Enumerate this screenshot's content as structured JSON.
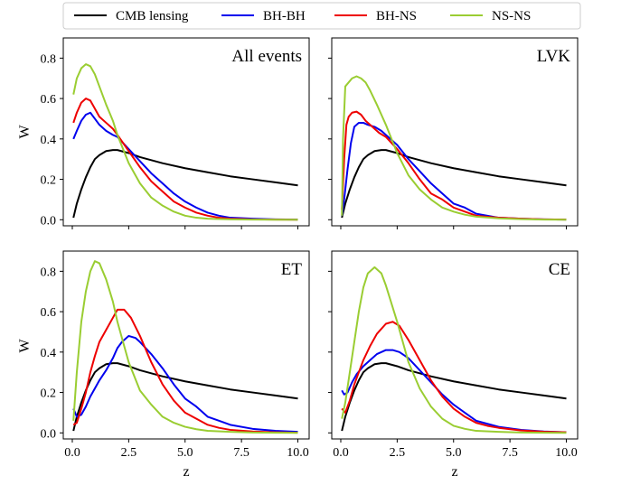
{
  "chart_data": {
    "type": "line",
    "layout": "2x2 grid, shared x and y axes",
    "xlabel": "z",
    "ylabel": "W",
    "xlim": [
      -0.4,
      10.5
    ],
    "ylim": [
      -0.03,
      0.9
    ],
    "xticks": [
      0,
      2.5,
      5,
      7.5,
      10
    ],
    "xtick_labels": [
      "0.0",
      "2.5",
      "5.0",
      "7.5",
      "10.0"
    ],
    "yticks": [
      0,
      0.2,
      0.4,
      0.6,
      0.8
    ],
    "ytick_labels": [
      "0.0",
      "0.2",
      "0.4",
      "0.6",
      "0.8"
    ],
    "legend": {
      "placement": "top-center outside",
      "entries": [
        {
          "label": "CMB lensing",
          "color": "#000000"
        },
        {
          "label": "BH-BH",
          "color": "#0000ee"
        },
        {
          "label": "BH-NS",
          "color": "#ee0000"
        },
        {
          "label": "NS-NS",
          "color": "#9acd32"
        }
      ]
    },
    "panels": [
      {
        "title": "All events",
        "series": [
          {
            "name": "CMB lensing",
            "color": "#000000",
            "x": [
              0.05,
              0.2,
              0.4,
              0.6,
              0.8,
              1,
              1.2,
              1.5,
              1.8,
              2,
              2.5,
              3,
              4,
              5,
              6,
              7,
              8,
              9,
              10
            ],
            "y": [
              0.01,
              0.08,
              0.15,
              0.21,
              0.26,
              0.3,
              0.32,
              0.34,
              0.345,
              0.345,
              0.33,
              0.31,
              0.28,
              0.255,
              0.235,
              0.215,
              0.2,
              0.185,
              0.17
            ]
          },
          {
            "name": "BH-BH",
            "color": "#0000ee",
            "x": [
              0.05,
              0.2,
              0.4,
              0.6,
              0.8,
              1,
              1.2,
              1.5,
              1.8,
              2,
              2.5,
              3,
              3.5,
              4,
              4.5,
              5,
              5.5,
              6,
              6.5,
              7,
              8,
              9,
              10
            ],
            "y": [
              0.4,
              0.44,
              0.49,
              0.52,
              0.53,
              0.5,
              0.47,
              0.44,
              0.42,
              0.41,
              0.35,
              0.29,
              0.23,
              0.18,
              0.13,
              0.09,
              0.06,
              0.035,
              0.02,
              0.01,
              0.005,
              0.002,
              0.001
            ]
          },
          {
            "name": "BH-NS",
            "color": "#ee0000",
            "x": [
              0.05,
              0.2,
              0.4,
              0.6,
              0.8,
              1,
              1.2,
              1.5,
              1.8,
              2,
              2.5,
              3,
              3.5,
              4,
              4.5,
              5,
              5.5,
              6,
              6.5,
              7,
              8,
              9,
              10
            ],
            "y": [
              0.48,
              0.53,
              0.58,
              0.6,
              0.59,
              0.55,
              0.51,
              0.48,
              0.45,
              0.42,
              0.34,
              0.26,
              0.19,
              0.14,
              0.09,
              0.06,
              0.035,
              0.02,
              0.01,
              0.005,
              0.002,
              0.001,
              0.0
            ]
          },
          {
            "name": "NS-NS",
            "color": "#9acd32",
            "x": [
              0.05,
              0.2,
              0.4,
              0.6,
              0.8,
              1,
              1.2,
              1.5,
              1.8,
              2,
              2.5,
              3,
              3.5,
              4,
              4.5,
              5,
              5.5,
              6,
              7,
              8,
              9,
              10
            ],
            "y": [
              0.62,
              0.7,
              0.75,
              0.77,
              0.76,
              0.72,
              0.66,
              0.57,
              0.49,
              0.42,
              0.28,
              0.18,
              0.11,
              0.07,
              0.04,
              0.02,
              0.01,
              0.005,
              0.002,
              0.001,
              0.0,
              0.0
            ]
          }
        ]
      },
      {
        "title": "LVK",
        "series": [
          {
            "name": "CMB lensing",
            "color": "#000000",
            "x": [
              0.05,
              0.2,
              0.4,
              0.6,
              0.8,
              1,
              1.2,
              1.5,
              1.8,
              2,
              2.5,
              3,
              4,
              5,
              6,
              7,
              8,
              9,
              10
            ],
            "y": [
              0.01,
              0.08,
              0.15,
              0.21,
              0.26,
              0.3,
              0.32,
              0.34,
              0.345,
              0.345,
              0.33,
              0.31,
              0.28,
              0.255,
              0.235,
              0.215,
              0.2,
              0.185,
              0.17
            ]
          },
          {
            "name": "BH-BH",
            "color": "#0000ee",
            "x": [
              0.05,
              0.15,
              0.3,
              0.45,
              0.6,
              0.8,
              1,
              1.2,
              1.5,
              1.8,
              2,
              2.5,
              3,
              3.5,
              4,
              4.5,
              5,
              5.5,
              6,
              6.5,
              7,
              8,
              9,
              10
            ],
            "y": [
              0.02,
              0.1,
              0.25,
              0.38,
              0.46,
              0.48,
              0.48,
              0.47,
              0.46,
              0.44,
              0.42,
              0.37,
              0.3,
              0.24,
              0.18,
              0.13,
              0.08,
              0.06,
              0.03,
              0.02,
              0.01,
              0.005,
              0.002,
              0.001
            ]
          },
          {
            "name": "BH-NS",
            "color": "#ee0000",
            "x": [
              0.05,
              0.15,
              0.25,
              0.35,
              0.5,
              0.7,
              0.9,
              1.1,
              1.4,
              1.7,
              2,
              2.5,
              3,
              3.5,
              4,
              4.5,
              5,
              5.5,
              6,
              6.5,
              7,
              8,
              9,
              10
            ],
            "y": [
              0.05,
              0.3,
              0.47,
              0.51,
              0.53,
              0.535,
              0.52,
              0.49,
              0.46,
              0.43,
              0.41,
              0.35,
              0.28,
              0.2,
              0.13,
              0.1,
              0.06,
              0.04,
              0.02,
              0.015,
              0.01,
              0.005,
              0.002,
              0.001
            ]
          },
          {
            "name": "NS-NS",
            "color": "#9acd32",
            "x": [
              0.05,
              0.1,
              0.2,
              0.35,
              0.5,
              0.7,
              0.9,
              1.1,
              1.3,
              1.6,
              2,
              2.5,
              3,
              3.5,
              4,
              4.5,
              5,
              5.5,
              6,
              7,
              8,
              9,
              10
            ],
            "y": [
              0.02,
              0.4,
              0.66,
              0.68,
              0.7,
              0.71,
              0.7,
              0.68,
              0.64,
              0.57,
              0.47,
              0.33,
              0.22,
              0.15,
              0.1,
              0.06,
              0.04,
              0.025,
              0.015,
              0.007,
              0.003,
              0.001,
              0.0
            ]
          }
        ]
      },
      {
        "title": "ET",
        "series": [
          {
            "name": "CMB lensing",
            "color": "#000000",
            "x": [
              0.05,
              0.2,
              0.4,
              0.6,
              0.8,
              1,
              1.2,
              1.5,
              1.8,
              2,
              2.5,
              3,
              4,
              5,
              6,
              7,
              8,
              9,
              10
            ],
            "y": [
              0.01,
              0.08,
              0.15,
              0.21,
              0.26,
              0.3,
              0.32,
              0.34,
              0.345,
              0.345,
              0.33,
              0.31,
              0.28,
              0.255,
              0.235,
              0.215,
              0.2,
              0.185,
              0.17
            ]
          },
          {
            "name": "BH-BH",
            "color": "#0000ee",
            "x": [
              0.05,
              0.2,
              0.4,
              0.6,
              0.8,
              1,
              1.2,
              1.5,
              1.8,
              2,
              2.2,
              2.5,
              2.8,
              3,
              3.5,
              4,
              4.5,
              5,
              5.5,
              6,
              6.5,
              7,
              8,
              9,
              10
            ],
            "y": [
              0.12,
              0.08,
              0.09,
              0.13,
              0.18,
              0.22,
              0.26,
              0.31,
              0.37,
              0.42,
              0.45,
              0.48,
              0.47,
              0.45,
              0.39,
              0.32,
              0.24,
              0.17,
              0.13,
              0.08,
              0.06,
              0.04,
              0.02,
              0.01,
              0.005
            ]
          },
          {
            "name": "BH-NS",
            "color": "#ee0000",
            "x": [
              0.05,
              0.2,
              0.4,
              0.6,
              0.8,
              1,
              1.2,
              1.5,
              1.8,
              2,
              2.3,
              2.6,
              3,
              3.5,
              4,
              4.5,
              5,
              5.5,
              6,
              6.5,
              7,
              8,
              9,
              10
            ],
            "y": [
              0.04,
              0.05,
              0.12,
              0.2,
              0.3,
              0.38,
              0.45,
              0.51,
              0.57,
              0.61,
              0.61,
              0.57,
              0.48,
              0.35,
              0.24,
              0.16,
              0.1,
              0.07,
              0.04,
              0.025,
              0.015,
              0.007,
              0.003,
              0.001
            ]
          },
          {
            "name": "NS-NS",
            "color": "#9acd32",
            "x": [
              0.05,
              0.2,
              0.4,
              0.6,
              0.8,
              1,
              1.2,
              1.5,
              1.8,
              2,
              2.5,
              3,
              3.5,
              4,
              4.5,
              5,
              5.5,
              6,
              7,
              8,
              9,
              10
            ],
            "y": [
              0.06,
              0.3,
              0.55,
              0.7,
              0.8,
              0.85,
              0.84,
              0.76,
              0.65,
              0.55,
              0.35,
              0.21,
              0.14,
              0.08,
              0.05,
              0.03,
              0.018,
              0.01,
              0.005,
              0.002,
              0.001,
              0.0
            ]
          }
        ]
      },
      {
        "title": "CE",
        "series": [
          {
            "name": "CMB lensing",
            "color": "#000000",
            "x": [
              0.05,
              0.2,
              0.4,
              0.6,
              0.8,
              1,
              1.2,
              1.5,
              1.8,
              2,
              2.5,
              3,
              4,
              5,
              6,
              7,
              8,
              9,
              10
            ],
            "y": [
              0.01,
              0.08,
              0.15,
              0.21,
              0.26,
              0.3,
              0.32,
              0.34,
              0.345,
              0.345,
              0.33,
              0.31,
              0.28,
              0.255,
              0.235,
              0.215,
              0.2,
              0.185,
              0.17
            ]
          },
          {
            "name": "BH-BH",
            "color": "#0000ee",
            "x": [
              0.05,
              0.15,
              0.3,
              0.5,
              0.7,
              1,
              1.3,
              1.6,
              2,
              2.3,
              2.6,
              3,
              3.5,
              4,
              4.5,
              5,
              5.5,
              6,
              6.5,
              7,
              8,
              9,
              10
            ],
            "y": [
              0.21,
              0.19,
              0.2,
              0.25,
              0.29,
              0.33,
              0.36,
              0.39,
              0.41,
              0.41,
              0.4,
              0.37,
              0.31,
              0.25,
              0.19,
              0.14,
              0.1,
              0.06,
              0.045,
              0.03,
              0.015,
              0.007,
              0.003
            ]
          },
          {
            "name": "BH-NS",
            "color": "#ee0000",
            "x": [
              0.05,
              0.2,
              0.4,
              0.6,
              0.8,
              1,
              1.3,
              1.6,
              2,
              2.3,
              2.6,
              3,
              3.5,
              4,
              4.5,
              5,
              5.5,
              6,
              6.5,
              7,
              8,
              9,
              10
            ],
            "y": [
              0.12,
              0.1,
              0.16,
              0.24,
              0.3,
              0.36,
              0.43,
              0.49,
              0.54,
              0.55,
              0.53,
              0.46,
              0.36,
              0.26,
              0.18,
              0.12,
              0.08,
              0.05,
              0.035,
              0.025,
              0.012,
              0.006,
              0.003
            ]
          },
          {
            "name": "NS-NS",
            "color": "#9acd32",
            "x": [
              0.05,
              0.2,
              0.4,
              0.6,
              0.8,
              1,
              1.2,
              1.5,
              1.8,
              2,
              2.5,
              3,
              3.5,
              4,
              4.5,
              5,
              5.5,
              6,
              7,
              8,
              9,
              10
            ],
            "y": [
              0.07,
              0.15,
              0.3,
              0.45,
              0.6,
              0.72,
              0.79,
              0.82,
              0.79,
              0.73,
              0.55,
              0.35,
              0.22,
              0.13,
              0.07,
              0.035,
              0.02,
              0.01,
              0.005,
              0.002,
              0.001,
              0.0
            ]
          }
        ]
      }
    ]
  }
}
